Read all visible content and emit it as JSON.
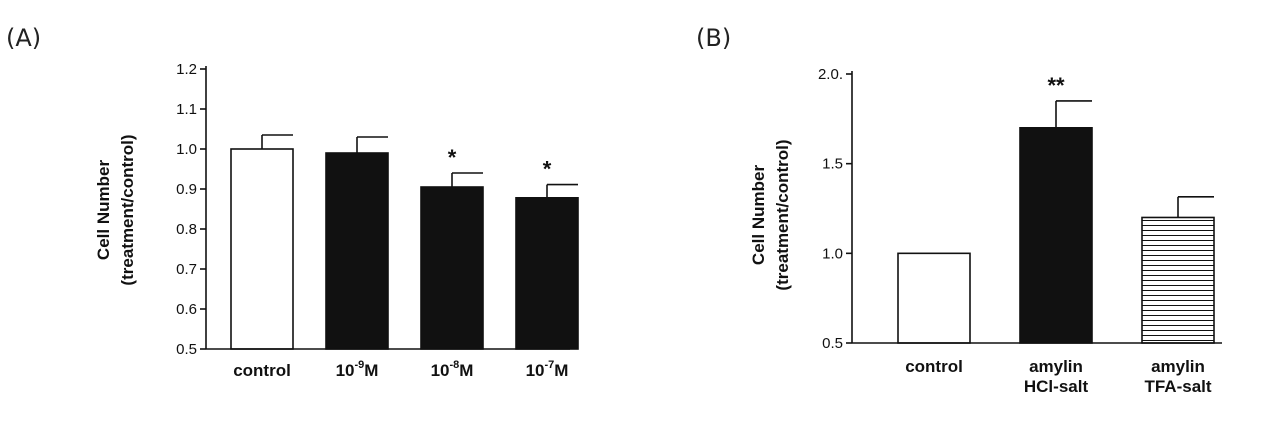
{
  "chart_data": [
    {
      "type": "bar",
      "panel_label": "(A)",
      "ylabel_line1": "Cell Number",
      "ylabel_line2": "(treatment/control)",
      "ylim": [
        0.5,
        1.2
      ],
      "yticks": [
        "0.5",
        "0.6",
        "0.7",
        "0.8",
        "0.9",
        "1.0",
        "1.1",
        "1.2"
      ],
      "categories": [
        {
          "base": "control",
          "sup": "",
          "suffix": ""
        },
        {
          "base": "10",
          "sup": "-9",
          "suffix": "M"
        },
        {
          "base": "10",
          "sup": "-8",
          "suffix": "M"
        },
        {
          "base": "10",
          "sup": "-7",
          "suffix": "M"
        }
      ],
      "values": [
        1.0,
        0.99,
        0.905,
        0.878
      ],
      "errors": [
        0.035,
        0.04,
        0.035,
        0.033
      ],
      "fills": [
        "white",
        "black",
        "black",
        "black"
      ],
      "annotations": [
        "",
        "",
        "*",
        "*"
      ]
    },
    {
      "type": "bar",
      "panel_label": "(B)",
      "ylabel_line1": "Cell Number",
      "ylabel_line2": "(treatment/control)",
      "ylim": [
        0.5,
        2.0
      ],
      "yticks": [
        "0.5",
        "1.0",
        "1.5",
        "2.0."
      ],
      "categories": [
        {
          "line1": "control",
          "line2": ""
        },
        {
          "line1": "amylin",
          "line2": "HCl-salt"
        },
        {
          "line1": "amylin",
          "line2": "TFA-salt"
        }
      ],
      "values": [
        1.0,
        1.7,
        1.2
      ],
      "errors": [
        0.0,
        0.15,
        0.115
      ],
      "fills": [
        "white",
        "black",
        "hatched"
      ],
      "annotations": [
        "",
        "**",
        ""
      ]
    }
  ]
}
